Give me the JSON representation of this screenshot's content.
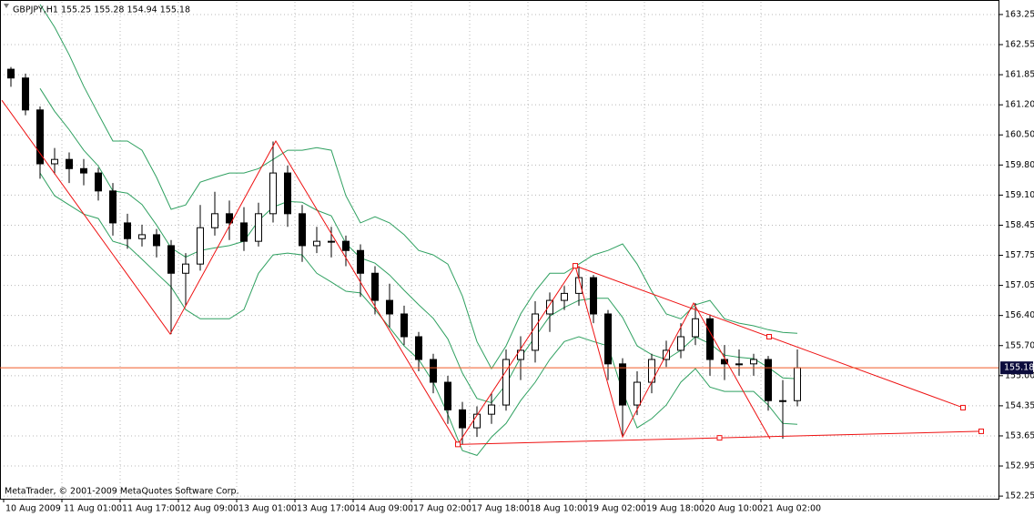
{
  "chart_data": {
    "type": "candlestick",
    "title": "GBPJPY,H1  155.25 155.28 154.94 155.18",
    "footer": "MetaTrader, © 2001-2009 MetaQuotes Software Corp.",
    "xlim": [
      -1,
      273.25
    ],
    "ylim": [
      152.19,
      163.54
    ],
    "grid": true,
    "xticks": [
      {
        "value": 0,
        "label": "10 Aug 2009"
      },
      {
        "value": 16,
        "label": "11 Aug 01:00"
      },
      {
        "value": 32,
        "label": "11 Aug 17:00"
      },
      {
        "value": 48,
        "label": "12 Aug 09:00"
      },
      {
        "value": 64,
        "label": "13 Aug 01:00"
      },
      {
        "value": 80,
        "label": "13 Aug 17:00"
      },
      {
        "value": 96,
        "label": "14 Aug 09:00"
      },
      {
        "value": 112,
        "label": "17 Aug 02:00"
      },
      {
        "value": 128,
        "label": "17 Aug 18:00"
      },
      {
        "value": 144,
        "label": "18 Aug 10:00"
      },
      {
        "value": 160,
        "label": "19 Aug 02:00"
      },
      {
        "value": 176,
        "label": "19 Aug 18:00"
      },
      {
        "value": 192,
        "label": "20 Aug 10:00"
      },
      {
        "value": 208,
        "label": "21 Aug 02:00"
      }
    ],
    "yticks": [
      {
        "value": 152.25,
        "label": "152.25"
      },
      {
        "value": 152.9375,
        "label": "152.95"
      },
      {
        "value": 153.625,
        "label": "153.65"
      },
      {
        "value": 154.3125,
        "label": "154.35"
      },
      {
        "value": 155.0,
        "label": "155.00"
      },
      {
        "value": 155.6875,
        "label": "155.70"
      },
      {
        "value": 156.375,
        "label": "156.40"
      },
      {
        "value": 157.0625,
        "label": "157.05"
      },
      {
        "value": 157.75,
        "label": "157.75"
      },
      {
        "value": 158.4375,
        "label": "158.45"
      },
      {
        "value": 159.125,
        "label": "159.10"
      },
      {
        "value": 159.8125,
        "label": "159.80"
      },
      {
        "value": 160.5,
        "label": "160.50"
      },
      {
        "value": 161.1875,
        "label": "161.20"
      },
      {
        "value": 161.875,
        "label": "161.85"
      },
      {
        "value": 162.5625,
        "label": "162.55"
      },
      {
        "value": 163.25,
        "label": "163.25"
      }
    ],
    "x": [
      2,
      6,
      10,
      14,
      18,
      22,
      26,
      30,
      34,
      38,
      42,
      46,
      50,
      54,
      58,
      62,
      66,
      70,
      74,
      78,
      82,
      86,
      90,
      94,
      98,
      102,
      106,
      110,
      114,
      118,
      122,
      126,
      130,
      134,
      138,
      142,
      146,
      150,
      154,
      158,
      162,
      166,
      170,
      174,
      178,
      182,
      186,
      190,
      194,
      198,
      202,
      206,
      210,
      214,
      218
    ],
    "open": [
      162.0,
      161.8,
      161.07,
      159.84,
      159.94,
      159.73,
      159.63,
      159.22,
      158.49,
      158.13,
      158.22,
      157.97,
      157.34,
      157.55,
      158.38,
      158.7,
      158.49,
      158.07,
      158.7,
      159.63,
      158.7,
      157.97,
      158.07,
      158.07,
      157.86,
      157.34,
      156.72,
      156.41,
      155.89,
      155.37,
      154.85,
      154.22,
      153.81,
      154.12,
      154.33,
      155.37,
      155.58,
      156.41,
      156.72,
      156.88,
      157.24,
      156.41,
      155.27,
      154.33,
      154.85,
      155.37,
      155.58,
      155.89,
      156.3,
      155.37,
      155.27,
      155.27,
      155.37,
      154.43,
      154.43
    ],
    "high": [
      162.05,
      161.9,
      161.15,
      160.2,
      160.1,
      159.95,
      159.75,
      159.4,
      158.7,
      158.45,
      158.35,
      158.1,
      157.8,
      158.9,
      159.2,
      159.0,
      158.85,
      158.95,
      160.35,
      159.8,
      158.9,
      158.4,
      158.4,
      158.2,
      158.0,
      157.5,
      157.1,
      156.6,
      156.0,
      155.5,
      155.0,
      154.4,
      154.3,
      154.6,
      155.6,
      155.9,
      156.7,
      156.9,
      157.05,
      157.5,
      157.3,
      156.5,
      155.4,
      155.1,
      155.5,
      155.8,
      156.2,
      156.66,
      156.4,
      155.7,
      155.6,
      155.5,
      155.45,
      154.9,
      155.6
    ],
    "low": [
      161.6,
      160.95,
      159.5,
      159.6,
      159.4,
      159.35,
      159.0,
      158.2,
      157.9,
      157.95,
      157.7,
      155.95,
      156.6,
      157.4,
      158.2,
      158.1,
      157.85,
      157.95,
      158.5,
      158.4,
      157.6,
      157.8,
      157.7,
      157.5,
      156.8,
      156.4,
      156.1,
      155.7,
      155.1,
      154.6,
      153.9,
      153.43,
      153.6,
      153.9,
      154.2,
      154.9,
      155.3,
      156.0,
      156.5,
      156.6,
      156.2,
      154.9,
      153.6,
      154.1,
      154.6,
      155.2,
      155.4,
      155.7,
      155.0,
      154.9,
      155.0,
      155.0,
      154.2,
      153.56,
      154.3
    ],
    "close": [
      161.8,
      161.07,
      159.84,
      159.94,
      159.73,
      159.63,
      159.22,
      158.49,
      158.13,
      158.22,
      157.97,
      157.34,
      157.55,
      158.38,
      158.7,
      158.49,
      158.07,
      158.7,
      159.63,
      158.7,
      157.97,
      158.07,
      158.07,
      157.86,
      157.34,
      156.72,
      156.41,
      155.89,
      155.37,
      154.85,
      154.22,
      153.81,
      154.12,
      154.33,
      155.37,
      155.58,
      156.41,
      156.72,
      156.88,
      157.24,
      156.41,
      155.27,
      154.33,
      154.85,
      155.37,
      155.58,
      155.89,
      156.3,
      155.37,
      155.27,
      155.27,
      155.37,
      154.43,
      154.43,
      155.18
    ],
    "bollinger": {
      "color": "#2fa060",
      "upper": [
        null,
        null,
        163.48,
        162.96,
        162.33,
        161.61,
        160.98,
        160.36,
        160.36,
        160.15,
        159.53,
        158.8,
        158.9,
        159.42,
        159.53,
        159.63,
        159.63,
        159.73,
        159.94,
        160.15,
        160.15,
        160.21,
        160.15,
        159.11,
        158.49,
        158.63,
        158.49,
        158.22,
        157.86,
        157.76,
        157.55,
        156.82,
        155.78,
        155.16,
        155.68,
        156.41,
        156.93,
        157.34,
        157.34,
        157.55,
        157.76,
        157.86,
        158.01,
        157.55,
        156.93,
        156.41,
        156.3,
        156.62,
        156.72,
        156.3,
        156.2,
        156.14,
        156.05,
        155.99,
        155.97
      ],
      "middle": [
        null,
        null,
        161.56,
        161.04,
        160.62,
        160.15,
        159.79,
        159.22,
        159.17,
        158.91,
        158.44,
        157.92,
        157.71,
        157.86,
        157.92,
        157.97,
        158.07,
        158.54,
        158.85,
        158.98,
        158.96,
        158.78,
        158.65,
        158.02,
        157.69,
        157.57,
        157.3,
        156.95,
        156.62,
        156.31,
        155.84,
        155.06,
        154.48,
        154.38,
        154.8,
        155.42,
        155.89,
        156.36,
        156.56,
        156.72,
        156.77,
        156.77,
        156.33,
        155.68,
        155.48,
        155.37,
        155.58,
        155.89,
        155.73,
        155.47,
        155.42,
        155.39,
        155.19,
        154.95,
        154.93
      ],
      "lower": [
        null,
        null,
        159.63,
        159.11,
        158.9,
        158.69,
        158.59,
        158.07,
        157.97,
        157.66,
        157.34,
        157.03,
        156.51,
        156.3,
        156.3,
        156.3,
        156.51,
        157.34,
        157.76,
        157.8,
        157.76,
        157.34,
        157.14,
        156.93,
        156.89,
        156.51,
        156.1,
        155.68,
        155.37,
        154.85,
        154.12,
        153.29,
        153.18,
        153.6,
        153.91,
        154.43,
        154.85,
        155.37,
        155.78,
        155.89,
        155.78,
        155.68,
        154.64,
        153.81,
        154.02,
        154.33,
        154.85,
        155.16,
        154.74,
        154.64,
        154.64,
        154.64,
        154.33,
        153.91,
        153.89
      ]
    },
    "zigzag": {
      "color": "#ee1111",
      "x": [
        -0.5,
        45.75,
        74.75,
        124.75,
        157,
        170,
        189.5,
        210.5
      ],
      "values": [
        161.29,
        155.95,
        160.36,
        153.43,
        157.51,
        153.6,
        156.66,
        153.56
      ]
    },
    "trendlines": [
      {
        "color": "#ee1111",
        "x": [
          157,
          263.5
        ],
        "values": [
          157.51,
          154.27
        ]
      },
      {
        "color": "#ee1111",
        "x": [
          124.75,
          268.5
        ],
        "values": [
          153.43,
          153.73
        ]
      }
    ],
    "current_price": 155.18,
    "current_price_color": "#f05a28"
  }
}
